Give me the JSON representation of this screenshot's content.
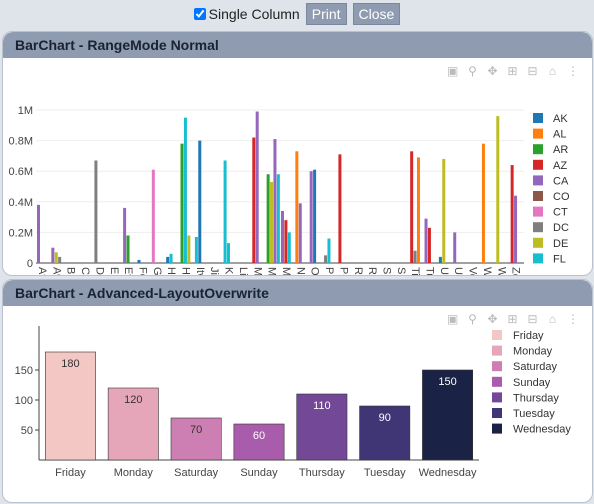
{
  "topbar": {
    "checkbox_label": "Single Column",
    "print_label": "Print",
    "close_label": "Close"
  },
  "panel1": {
    "title": "BarChart - RangeMode Normal"
  },
  "panel2": {
    "title": "BarChart - Advanced-LayoutOverwrite"
  },
  "toolbar_icons": [
    "camera-icon",
    "zoom-icon",
    "pan-icon",
    "zoom-in-icon",
    "zoom-out-icon",
    "home-icon",
    "spike-icon"
  ],
  "chart_data": [
    {
      "type": "bar",
      "ylim": [
        0,
        1000000
      ],
      "ytick_labels": [
        "0",
        "0.2M",
        "0.4M",
        "0.6M",
        "0.8M",
        "1M"
      ],
      "categories": [
        "Afvoo",
        "Avnit",
        "Binej",
        "Cewf",
        "Diazi",
        "Ehrel",
        "Evbu",
        "Feisu",
        "Geuc",
        "Huak",
        "Huwi",
        "Itvjw",
        "Jimol",
        "Kivpi",
        "Lilbe",
        "Manc",
        "Miojc",
        "Muvi",
        "Nevz",
        "Onek",
        "Pikon",
        "Potid",
        "Rashi",
        "Rutor",
        "Sibiz",
        "Sudo",
        "Tinat",
        "Tuzis",
        "Ufoe",
        "Uvul",
        "Vohu",
        "Wenj",
        "Wivk",
        "Zetdc"
      ],
      "legend": [
        {
          "name": "AK",
          "color": "#1f77b4"
        },
        {
          "name": "AL",
          "color": "#ff7f0e"
        },
        {
          "name": "AR",
          "color": "#2ca02c"
        },
        {
          "name": "AZ",
          "color": "#d62728"
        },
        {
          "name": "CA",
          "color": "#9467bd"
        },
        {
          "name": "CO",
          "color": "#8c564b"
        },
        {
          "name": "CT",
          "color": "#e377c2"
        },
        {
          "name": "DC",
          "color": "#7f7f7f"
        },
        {
          "name": "DE",
          "color": "#bcbd22"
        },
        {
          "name": "FL",
          "color": "#17becf"
        }
      ],
      "bars": [
        {
          "category": "Afvoo",
          "series": "CA",
          "value": 380000
        },
        {
          "category": "Avnit",
          "series": "CA",
          "value": 100000
        },
        {
          "category": "Avnit",
          "series": "DE",
          "value": 70000
        },
        {
          "category": "Avnit",
          "series": "DC",
          "value": 40000
        },
        {
          "category": "Diazi",
          "series": "DC",
          "value": 670000
        },
        {
          "category": "Evbu",
          "series": "CA",
          "value": 360000
        },
        {
          "category": "Evbu",
          "series": "AR",
          "value": 180000
        },
        {
          "category": "Feisu",
          "series": "AK",
          "value": 20000
        },
        {
          "category": "Geuc",
          "series": "CT",
          "value": 610000
        },
        {
          "category": "Huak",
          "series": "AK",
          "value": 40000
        },
        {
          "category": "Huak",
          "series": "FL",
          "value": 60000
        },
        {
          "category": "Huwi",
          "series": "AR",
          "value": 780000
        },
        {
          "category": "Huwi",
          "series": "FL",
          "value": 950000
        },
        {
          "category": "Huwi",
          "series": "DE",
          "value": 180000
        },
        {
          "category": "Itvjw",
          "series": "FL",
          "value": 170000
        },
        {
          "category": "Itvjw",
          "series": "AK",
          "value": 800000
        },
        {
          "category": "Kivpi",
          "series": "FL",
          "value": 670000
        },
        {
          "category": "Kivpi",
          "series": "FL",
          "value": 130000
        },
        {
          "category": "Manc",
          "series": "AZ",
          "value": 820000
        },
        {
          "category": "Manc",
          "series": "CA",
          "value": 990000
        },
        {
          "category": "Miojc",
          "series": "AR",
          "value": 580000
        },
        {
          "category": "Miojc",
          "series": "DE",
          "value": 530000
        },
        {
          "category": "Miojc",
          "series": "CA",
          "value": 810000
        },
        {
          "category": "Miojc",
          "series": "FL",
          "value": 580000
        },
        {
          "category": "Muvi",
          "series": "CA",
          "value": 340000
        },
        {
          "category": "Muvi",
          "series": "AZ",
          "value": 280000
        },
        {
          "category": "Muvi",
          "series": "FL",
          "value": 200000
        },
        {
          "category": "Nevz",
          "series": "AL",
          "value": 730000
        },
        {
          "category": "Nevz",
          "series": "CA",
          "value": 390000
        },
        {
          "category": "Onek",
          "series": "CA",
          "value": 600000
        },
        {
          "category": "Onek",
          "series": "AK",
          "value": 610000
        },
        {
          "category": "Pikon",
          "series": "DC",
          "value": 50000
        },
        {
          "category": "Pikon",
          "series": "FL",
          "value": 160000
        },
        {
          "category": "Potid",
          "series": "AZ",
          "value": 710000
        },
        {
          "category": "Tinat",
          "series": "AZ",
          "value": 730000
        },
        {
          "category": "Tinat",
          "series": "DC",
          "value": 80000
        },
        {
          "category": "Tinat",
          "series": "AL",
          "value": 690000
        },
        {
          "category": "Tuzis",
          "series": "CA",
          "value": 290000
        },
        {
          "category": "Tuzis",
          "series": "AZ",
          "value": 230000
        },
        {
          "category": "Ufoe",
          "series": "AK",
          "value": 40000
        },
        {
          "category": "Ufoe",
          "series": "DE",
          "value": 680000
        },
        {
          "category": "Uvul",
          "series": "CA",
          "value": 200000
        },
        {
          "category": "Wenj",
          "series": "AL",
          "value": 780000
        },
        {
          "category": "Wivk",
          "series": "DE",
          "value": 960000
        },
        {
          "category": "Zetdc",
          "series": "AZ",
          "value": 640000
        },
        {
          "category": "Zetdc",
          "series": "CA",
          "value": 440000
        }
      ]
    },
    {
      "type": "bar",
      "ylim": [
        0,
        190
      ],
      "ytick_values": [
        50,
        100,
        150
      ],
      "categories": [
        "Friday",
        "Monday",
        "Saturday",
        "Sunday",
        "Thursday",
        "Tuesday",
        "Wednesday"
      ],
      "values": [
        180,
        120,
        70,
        60,
        110,
        90,
        150
      ],
      "colors": [
        "#f3c7c4",
        "#e6a6ba",
        "#cd7fb3",
        "#a85cab",
        "#734896",
        "#403575",
        "#1a2346"
      ],
      "label_colors": [
        "#333",
        "#333",
        "#333",
        "#fff",
        "#fff",
        "#fff",
        "#fff"
      ],
      "legend": [
        "Friday",
        "Monday",
        "Saturday",
        "Sunday",
        "Thursday",
        "Tuesday",
        "Wednesday"
      ]
    }
  ]
}
